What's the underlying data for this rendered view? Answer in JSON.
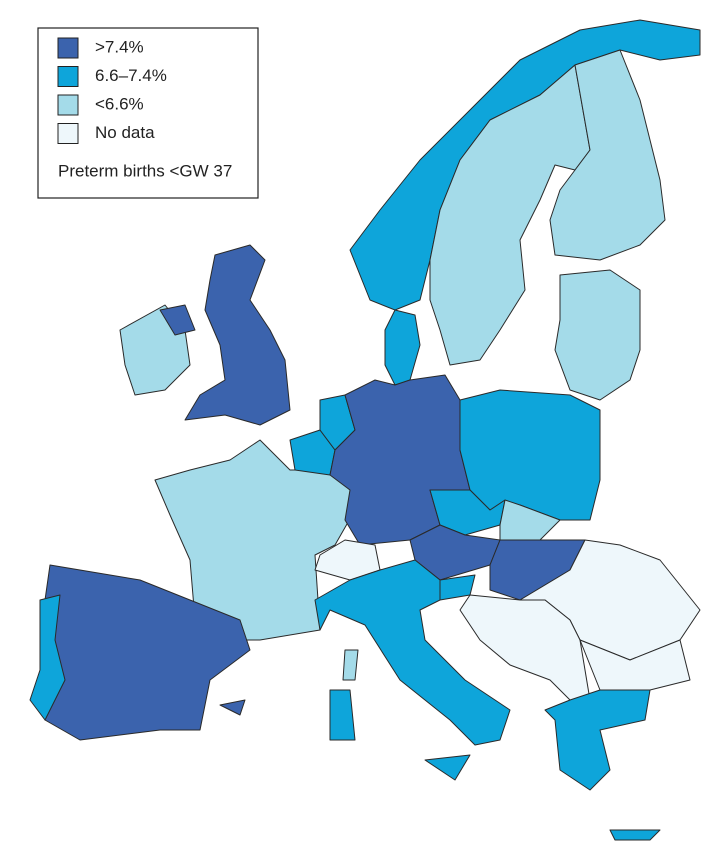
{
  "legend": {
    "items": [
      {
        "label": ">7.4%",
        "color": "#3b63ad"
      },
      {
        "label": "6.6–7.4%",
        "color": "#0ea5da"
      },
      {
        "label": "<6.6%",
        "color": "#a4dbe9"
      },
      {
        "label": "No data",
        "color": "#eef7fb"
      }
    ],
    "title": "Preterm births <GW 37"
  }
}
